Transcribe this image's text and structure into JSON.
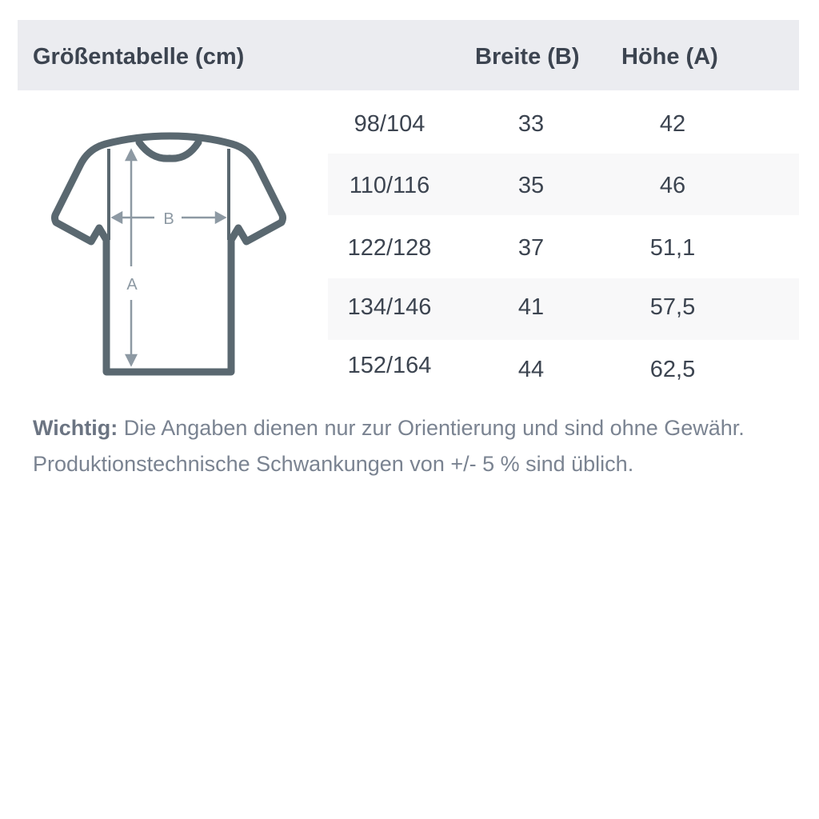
{
  "header": {
    "title": "Größentabelle (cm)",
    "col_width": "Breite (B)",
    "col_height": "Höhe (A)"
  },
  "diagram": {
    "label_width": "B",
    "label_height": "A",
    "stroke_color": "#5a6870",
    "arrow_color": "#8d99a3"
  },
  "rows": [
    {
      "size": "98/104",
      "width": "33",
      "height": "42"
    },
    {
      "size": "110/116",
      "width": "35",
      "height": "46"
    },
    {
      "size": "122/128",
      "width": "37",
      "height": "51,1"
    },
    {
      "size": "134/146",
      "width": "41",
      "height": "57,5"
    },
    {
      "size": "152/164",
      "width": "44",
      "height": "62,5"
    }
  ],
  "note": {
    "label": "Wichtig:",
    "line1": " Die Angaben dienen nur zur Orientierung und sind ohne Gewähr.",
    "line2": "Produktionstechnische Schwankungen von +/- 5 % sind üblich."
  }
}
